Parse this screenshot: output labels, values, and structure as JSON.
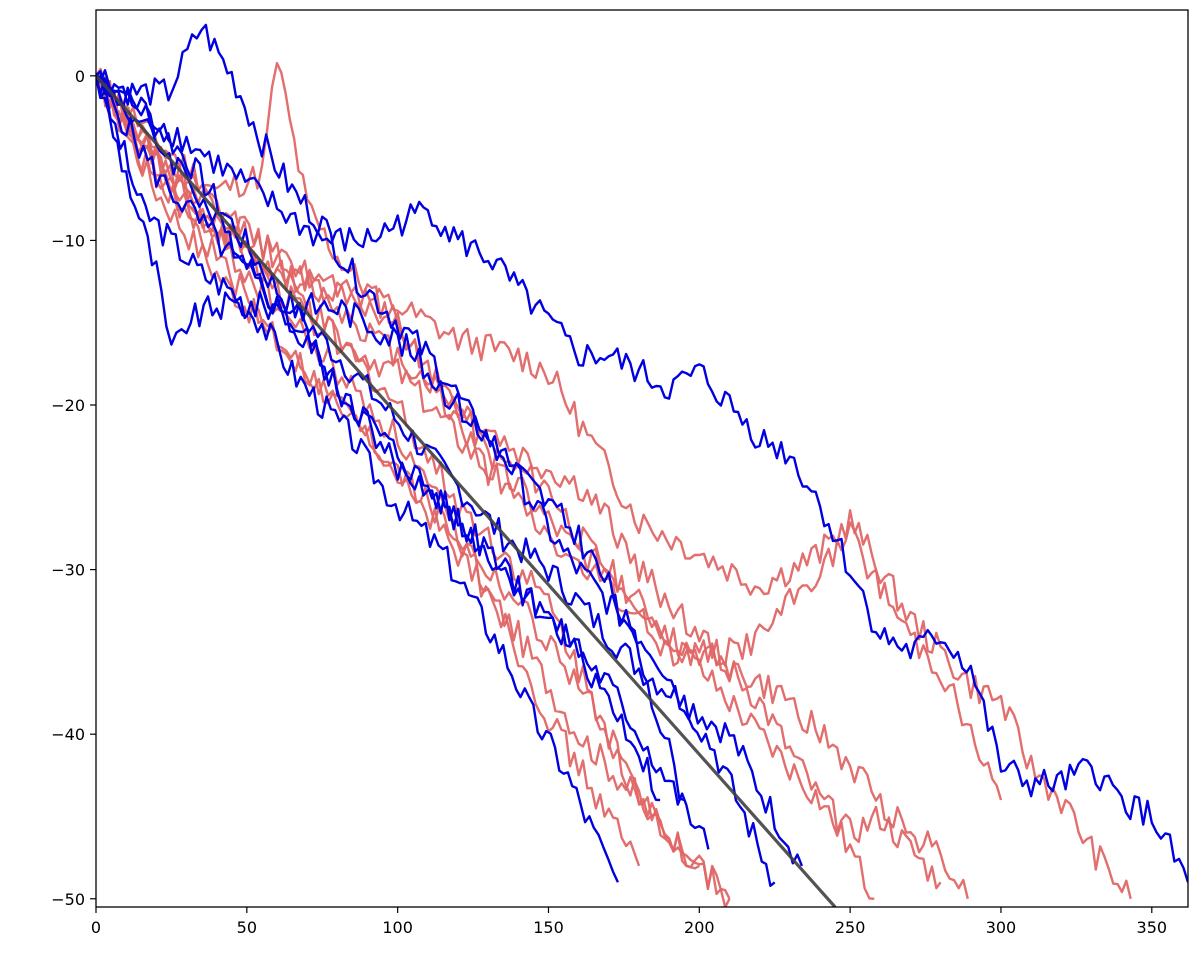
{
  "chart_data": {
    "type": "line",
    "title": "",
    "xlabel": "",
    "ylabel": "",
    "xlim": [
      0,
      362
    ],
    "ylim": [
      -50.5,
      4
    ],
    "xticks": [
      0,
      50,
      100,
      150,
      200,
      250,
      300,
      350
    ],
    "yticks": [
      0,
      -10,
      -20,
      -30,
      -40,
      -50
    ],
    "grid": false,
    "legend": "none",
    "colors": {
      "blue": "#0000e0",
      "red": "#e06666",
      "trend": "#404040"
    },
    "trend": {
      "x": [
        0,
        245
      ],
      "y": [
        0,
        -50.5
      ]
    },
    "series": [
      {
        "color": "blue",
        "x": [
          0,
          8,
          15,
          25,
          35,
          45,
          55,
          65,
          75,
          85,
          95,
          105,
          115,
          125,
          135,
          145,
          155,
          165,
          173
        ],
        "y": [
          0,
          -4,
          -8,
          -10,
          -12,
          -13,
          -15,
          -18,
          -20,
          -22,
          -25,
          -27,
          -29,
          -32,
          -35,
          -39,
          -42,
          -46,
          -49
        ]
      },
      {
        "color": "blue",
        "x": [
          0,
          10,
          20,
          30,
          40,
          50,
          60,
          70,
          80,
          90,
          100,
          110,
          120,
          130,
          140,
          150,
          160,
          170,
          180,
          187
        ],
        "y": [
          0,
          -2,
          -4,
          -6,
          -9,
          -11,
          -14,
          -16,
          -19,
          -21,
          -24,
          -25,
          -27,
          -29,
          -31,
          -33,
          -35,
          -38,
          -41,
          -44
        ]
      },
      {
        "color": "blue",
        "x": [
          0,
          10,
          20,
          30,
          40,
          50,
          60,
          70,
          80,
          90,
          100,
          110,
          120,
          130,
          140,
          150,
          160,
          170,
          180,
          190,
          200,
          203
        ],
        "y": [
          0,
          -3,
          -6,
          -8,
          -10,
          -12,
          -14,
          -16,
          -19,
          -21,
          -23,
          -25,
          -27,
          -29,
          -31,
          -33,
          -35,
          -37,
          -40,
          -43,
          -46,
          -47
        ]
      },
      {
        "color": "blue",
        "x": [
          0,
          12,
          24,
          35,
          45,
          55,
          65,
          75,
          85,
          95,
          105,
          115,
          125,
          135,
          145,
          155,
          165,
          175,
          185,
          195,
          205,
          215,
          225
        ],
        "y": [
          0,
          -1,
          -1,
          3,
          0,
          -4,
          -7,
          -9,
          -12,
          -14,
          -16,
          -18,
          -21,
          -23,
          -26,
          -29,
          -31,
          -33,
          -35,
          -38,
          -41,
          -45,
          -49
        ]
      },
      {
        "color": "blue",
        "x": [
          0,
          15,
          30,
          45,
          60,
          75,
          90,
          105,
          120,
          135,
          150,
          165,
          180,
          195,
          210,
          225,
          234
        ],
        "y": [
          0,
          -2,
          -5,
          -9,
          -13,
          -16,
          -19,
          -22,
          -25,
          -28,
          -30,
          -33,
          -36,
          -38,
          -40,
          -45,
          -48
        ]
      },
      {
        "color": "blue",
        "x": [
          0,
          15,
          30,
          45,
          60,
          75,
          90,
          100,
          110,
          120,
          130,
          140,
          150,
          160,
          170,
          180,
          190,
          200,
          210,
          220,
          230,
          240,
          250,
          260,
          270,
          280,
          290,
          300,
          310,
          320,
          330,
          340,
          350,
          362
        ],
        "y": [
          0,
          -2,
          -4,
          -6,
          -8,
          -10,
          -10,
          -9,
          -8,
          -10,
          -11,
          -13,
          -15,
          -17,
          -17,
          -18,
          -19,
          -18,
          -20,
          -22,
          -23,
          -26,
          -30,
          -34,
          -35,
          -34,
          -36,
          -42,
          -43,
          -43,
          -42,
          -44,
          -45,
          -49
        ]
      },
      {
        "color": "blue",
        "x": [
          0,
          10,
          20,
          25,
          30,
          40,
          50,
          60,
          70,
          80,
          90,
          100,
          110,
          120,
          130,
          140,
          150,
          160,
          170,
          180,
          190,
          195
        ],
        "y": [
          0,
          -6,
          -12,
          -17,
          -15,
          -14,
          -14,
          -14,
          -14,
          -14,
          -15,
          -16,
          -18,
          -20,
          -22,
          -24,
          -26,
          -28,
          -31,
          -35,
          -41,
          -44
        ]
      },
      {
        "color": "red",
        "x": [
          0,
          15,
          30,
          45,
          60,
          70,
          80,
          90,
          100,
          110,
          120,
          130,
          140,
          150,
          160,
          170,
          180,
          190,
          200,
          210
        ],
        "y": [
          0,
          -5,
          -8,
          -10,
          -12,
          -14,
          -16,
          -18,
          -20,
          -23,
          -26,
          -28,
          -30,
          -32,
          -36,
          -40,
          -44,
          -46,
          -48,
          -50
        ]
      },
      {
        "color": "red",
        "x": [
          0,
          20,
          40,
          55,
          60,
          70,
          80,
          90,
          100,
          110,
          120,
          130,
          140,
          150,
          160,
          170,
          180,
          190,
          200,
          210,
          220,
          230,
          240,
          250,
          258
        ],
        "y": [
          0,
          -4,
          -7,
          -6,
          1,
          -8,
          -11,
          -13,
          -15,
          -18,
          -20,
          -23,
          -24,
          -25,
          -28,
          -30,
          -32,
          -34,
          -36,
          -38,
          -40,
          -42,
          -44,
          -47,
          -50
        ]
      },
      {
        "color": "red",
        "x": [
          0,
          20,
          40,
          60,
          80,
          100,
          120,
          140,
          160,
          170,
          180,
          190,
          200,
          210,
          220,
          230,
          240,
          250,
          260,
          270,
          280,
          289
        ],
        "y": [
          0,
          -5,
          -8,
          -11,
          -14,
          -17,
          -20,
          -23,
          -25,
          -27,
          -30,
          -32,
          -34,
          -36,
          -37,
          -38,
          -40,
          -42,
          -44,
          -46,
          -47,
          -50
        ]
      },
      {
        "color": "red",
        "x": [
          0,
          20,
          40,
          60,
          80,
          100,
          120,
          140,
          150,
          160,
          170,
          180,
          200,
          220,
          230,
          240,
          250,
          260,
          270,
          280,
          290,
          300,
          310,
          320,
          330,
          343
        ],
        "y": [
          0,
          -5,
          -9,
          -12,
          -13,
          -14,
          -16,
          -17,
          -18,
          -21,
          -24,
          -27,
          -29,
          -31,
          -30,
          -29,
          -27,
          -30,
          -33,
          -35,
          -37,
          -38,
          -42,
          -44,
          -47,
          -50
        ]
      },
      {
        "color": "red",
        "x": [
          0,
          20,
          40,
          60,
          80,
          100,
          110,
          120,
          130,
          140,
          150,
          160,
          170,
          180,
          190,
          200,
          210,
          220,
          230,
          240,
          250,
          260,
          270,
          280
        ],
        "y": [
          0,
          -5,
          -9,
          -13,
          -16,
          -18,
          -20,
          -22,
          -24,
          -25,
          -27,
          -29,
          -30,
          -32,
          -34,
          -35,
          -36,
          -38,
          -41,
          -44,
          -46,
          -45,
          -47,
          -49
        ]
      },
      {
        "color": "red",
        "x": [
          0,
          20,
          40,
          60,
          80,
          100,
          110,
          120,
          130,
          140,
          150,
          160,
          170,
          180,
          190,
          200,
          210,
          220,
          230,
          240,
          250,
          260,
          270,
          280,
          290,
          300
        ],
        "y": [
          0,
          -5,
          -8,
          -11,
          -13,
          -15,
          -18,
          -21,
          -24,
          -26,
          -28,
          -30,
          -31,
          -33,
          -35,
          -35,
          -35,
          -34,
          -32,
          -30,
          -28,
          -31,
          -34,
          -36,
          -40,
          -44
        ]
      },
      {
        "color": "red",
        "x": [
          0,
          20,
          40,
          60,
          80,
          100,
          120,
          140,
          160,
          170,
          180,
          190,
          200,
          210
        ],
        "y": [
          0,
          -6,
          -11,
          -16,
          -20,
          -24,
          -28,
          -32,
          -37,
          -40,
          -44,
          -46,
          -48,
          -50
        ]
      },
      {
        "color": "red",
        "x": [
          0,
          20,
          40,
          60,
          80,
          100,
          120,
          140,
          160,
          170,
          180,
          190,
          200
        ],
        "y": [
          0,
          -7,
          -12,
          -16,
          -20,
          -24,
          -29,
          -34,
          -40,
          -42,
          -44,
          -46,
          -48
        ]
      },
      {
        "color": "red",
        "x": [
          0,
          20,
          40,
          60,
          80,
          100,
          110,
          120,
          130,
          140,
          150,
          160,
          170,
          180
        ],
        "y": [
          0,
          -6,
          -10,
          -14,
          -18,
          -22,
          -25,
          -28,
          -31,
          -35,
          -39,
          -42,
          -45,
          -48
        ]
      }
    ]
  }
}
